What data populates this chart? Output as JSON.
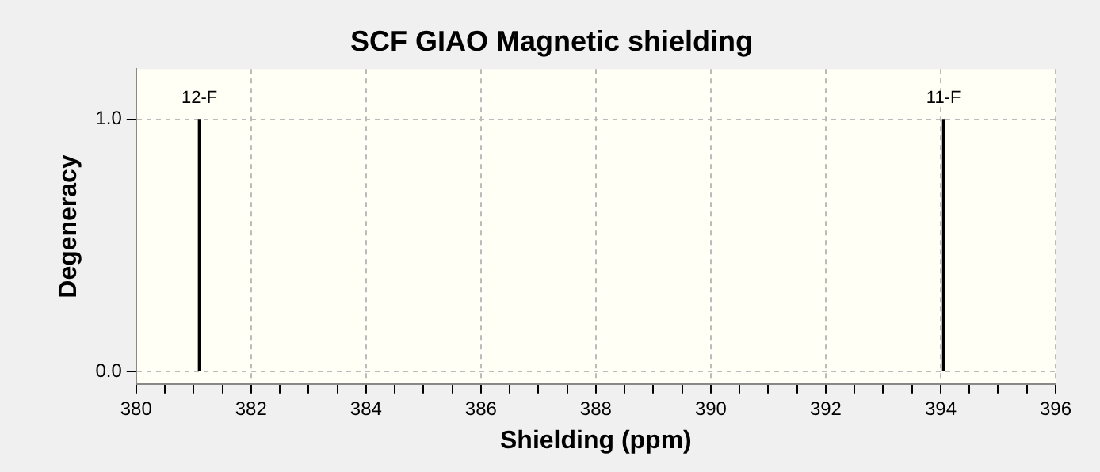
{
  "chart_data": {
    "type": "bar",
    "title": "SCF GIAO Magnetic shielding",
    "xlabel": "Shielding (ppm)",
    "ylabel": "Degeneracy",
    "x": [
      381.1,
      394.05
    ],
    "values": [
      1,
      1
    ],
    "color": "#000000",
    "annotations": [
      {
        "text": "12-F",
        "x": 381.1,
        "y": 1
      },
      {
        "text": "11-F",
        "x": 394.05,
        "y": 1
      }
    ],
    "xlim": [
      380,
      396
    ],
    "xticks": [
      380,
      {
        "value": 380.5,
        "label": null
      },
      {
        "value": 381,
        "label": null
      },
      {
        "value": 381.5,
        "label": null
      },
      382,
      {
        "value": 382.5,
        "label": null
      },
      {
        "value": 383,
        "label": null
      },
      {
        "value": 383.5,
        "label": null
      },
      384,
      {
        "value": 384.5,
        "label": null
      },
      {
        "value": 385,
        "label": null
      },
      {
        "value": 385.5,
        "label": null
      },
      386,
      {
        "value": 386.5,
        "label": null
      },
      {
        "value": 387,
        "label": null
      },
      {
        "value": 387.5,
        "label": null
      },
      388,
      {
        "value": 388.5,
        "label": null
      },
      {
        "value": 389,
        "label": null
      },
      {
        "value": 389.5,
        "label": null
      },
      390,
      {
        "value": 390.5,
        "label": null
      },
      {
        "value": 391,
        "label": null
      },
      {
        "value": 391.5,
        "label": null
      },
      392,
      {
        "value": 392.5,
        "label": null
      },
      {
        "value": 393,
        "label": null
      },
      {
        "value": 393.5,
        "label": null
      },
      394,
      {
        "value": 394.5,
        "label": null
      },
      {
        "value": 395,
        "label": null
      },
      {
        "value": 395.5,
        "label": null
      },
      396
    ],
    "ylim": [
      -0.05,
      1.2
    ],
    "yticks": [
      {
        "value": 0,
        "label": "0.0"
      },
      {
        "value": 1,
        "label": "1.0"
      }
    ],
    "grid": true,
    "legend": false
  }
}
